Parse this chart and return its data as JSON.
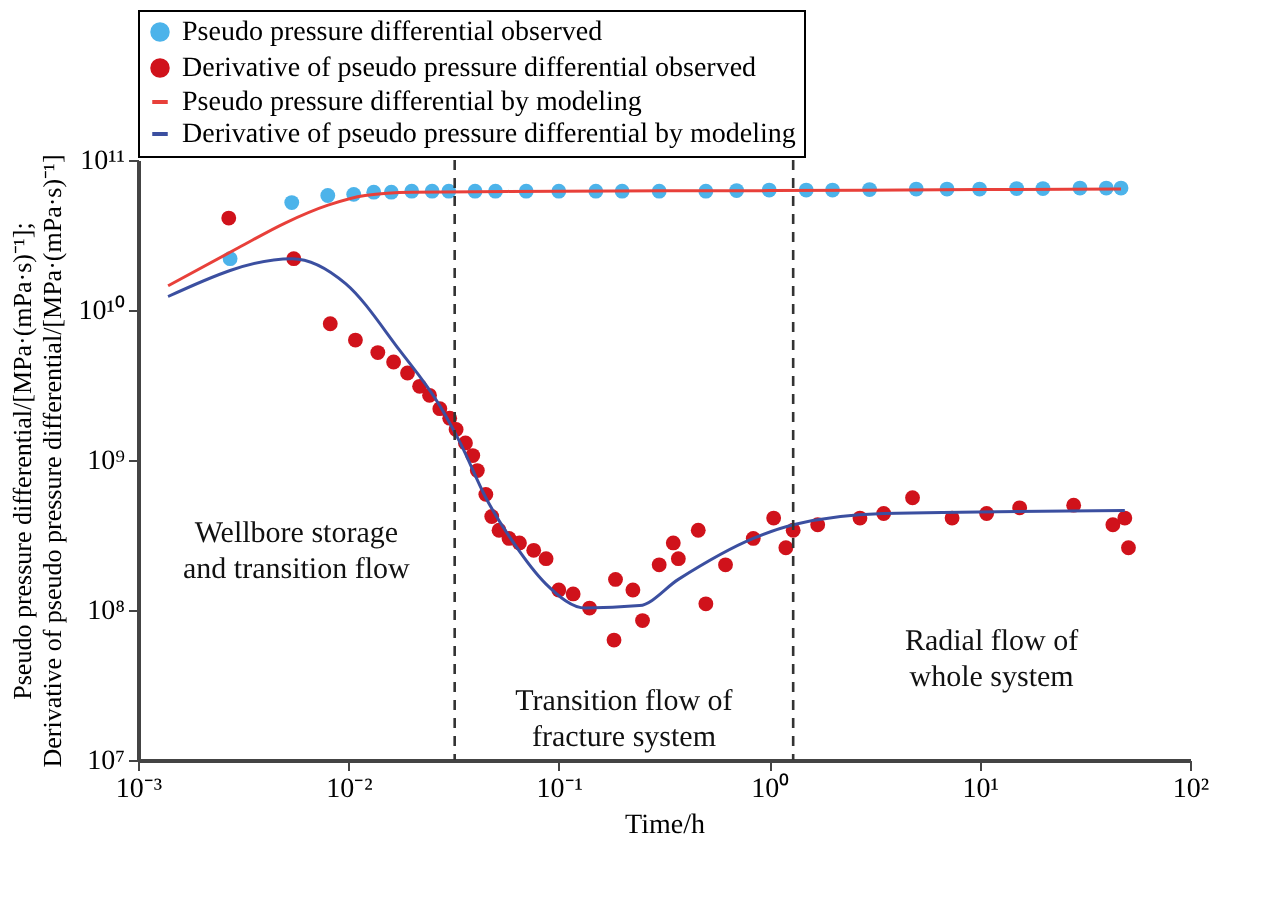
{
  "chart_data": {
    "type": "scatter",
    "xlabel": "Time/h",
    "ylabel": "Pseudo pressure differential/[MPa·(mPa·s)⁻¹];\nDerivative of pseudo pressure differential/[MPa·(mPa·s)⁻¹]",
    "log": "xy",
    "grid": false,
    "legend": "top",
    "xlim": [
      0.001,
      100
    ],
    "xticks": [
      {
        "value": 0.001,
        "label": "10⁻³"
      },
      {
        "value": 0.01,
        "label": "10⁻²"
      },
      {
        "value": 0.1,
        "label": "10⁻¹"
      },
      {
        "value": 1,
        "label": "10⁰"
      },
      {
        "value": 10,
        "label": "10¹"
      },
      {
        "value": 100,
        "label": "10²"
      }
    ],
    "ylim": [
      10000000,
      100000000000
    ],
    "yticks": [
      {
        "value": 10000000,
        "label": "10⁷"
      },
      {
        "value": 100000000,
        "label": "10⁸"
      },
      {
        "value": 1000000000,
        "label": "10⁹"
      },
      {
        "value": 10000000000,
        "label": "10¹⁰"
      },
      {
        "value": 100000000000,
        "label": "10¹¹"
      }
    ],
    "series": [
      {
        "name": "Pseudo pressure differential observed",
        "color": "#4cb3ea",
        "x": [
          0.00274,
          0.00538,
          0.00798,
          0.0106,
          0.0132,
          0.016,
          0.02,
          0.025,
          0.03,
          0.04,
          0.05,
          0.07,
          0.1,
          0.15,
          0.2,
          0.3,
          0.5,
          0.7,
          1,
          1.5,
          2,
          3,
          5,
          7,
          10,
          15,
          20,
          30,
          40,
          47
        ],
        "values": [
          22000000000,
          52000000000,
          58000000000,
          59000000000,
          61000000000,
          61000000000,
          62000000000,
          62000000000,
          62000000000,
          62000000000,
          62000000000,
          62000000000,
          62000000000,
          62000000000,
          62000000000,
          62000000000,
          62000000000,
          62500000000,
          63000000000,
          63000000000,
          63000000000,
          63500000000,
          64000000000,
          64000000000,
          64000000000,
          64500000000,
          64500000000,
          65000000000,
          65000000000,
          65000000000
        ]
      },
      {
        "name": "Derivative of pseudo pressure differential observed",
        "color": "#d0121b",
        "x": [
          0.0027,
          0.0055,
          0.0082,
          0.0108,
          0.0138,
          0.0164,
          0.0191,
          0.0218,
          0.0243,
          0.0272,
          0.0303,
          0.0325,
          0.036,
          0.039,
          0.041,
          0.045,
          0.048,
          0.052,
          0.058,
          0.065,
          0.076,
          0.087,
          0.1,
          0.117,
          0.14,
          0.183,
          0.186,
          0.225,
          0.25,
          0.3,
          0.35,
          0.37,
          0.46,
          0.5,
          0.62,
          0.84,
          1.05,
          1.2,
          1.3,
          1.7,
          2.7,
          3.5,
          4.8,
          7.4,
          10.8,
          15.5,
          28,
          43,
          49,
          51
        ],
        "values": [
          41000000000,
          22000000000,
          8100000000,
          6300000000,
          5200000000,
          4500000000,
          3800000000,
          3100000000,
          2700000000,
          2200000000,
          1900000000,
          1600000000,
          1300000000,
          1070000000,
          850000000,
          590000000,
          420000000,
          340000000,
          300000000,
          280000000,
          250000000,
          220000000,
          136000000,
          128000000,
          103000000,
          63000000,
          160000000,
          136000000,
          85000000,
          200000000,
          280000000,
          220000000,
          340000000,
          110000000,
          200000000,
          300000000,
          410000000,
          260000000,
          340000000,
          370000000,
          410000000,
          440000000,
          560000000,
          410000000,
          440000000,
          480000000,
          500000000,
          370000000,
          410000000,
          260000000
        ]
      },
      {
        "name": "Pseudo pressure differential by modeling",
        "type": "line",
        "color": "#e8403a",
        "x": [
          0.00139,
          0.003,
          0.005,
          0.008,
          0.012,
          0.02,
          0.1,
          1,
          10,
          47
        ],
        "values": [
          14500000000,
          26000000000,
          38000000000,
          50000000000,
          58000000000,
          61000000000,
          62000000000,
          62500000000,
          63500000000,
          64000000000
        ]
      },
      {
        "name": "Derivative of pseudo pressure differential by modeling",
        "type": "line",
        "color": "#3b4fa0",
        "x": [
          0.00139,
          0.0054,
          0.0097,
          0.0175,
          0.0272,
          0.034,
          0.045,
          0.061,
          0.0865,
          0.134,
          0.242,
          0.37,
          0.84,
          1.3,
          3.5,
          49
        ],
        "values": [
          12300000000,
          22000000000,
          15000000000,
          5400000000,
          2300000000,
          1300000000,
          560000000,
          280000000,
          150000000,
          103000000,
          107000000,
          160000000,
          300000000,
          370000000,
          440000000,
          460000000
        ]
      }
    ],
    "ref_lines": [
      {
        "axis": "x",
        "value": 0.032,
        "color": "#333333",
        "line_style": "dashed"
      },
      {
        "axis": "x",
        "value": 1.3,
        "color": "#333333",
        "line_style": "dashed"
      }
    ],
    "annotations": [
      "Wellbore storage\nand transition flow",
      "Transition flow of\nfracture system",
      "Radial flow of\nwhole system"
    ]
  }
}
